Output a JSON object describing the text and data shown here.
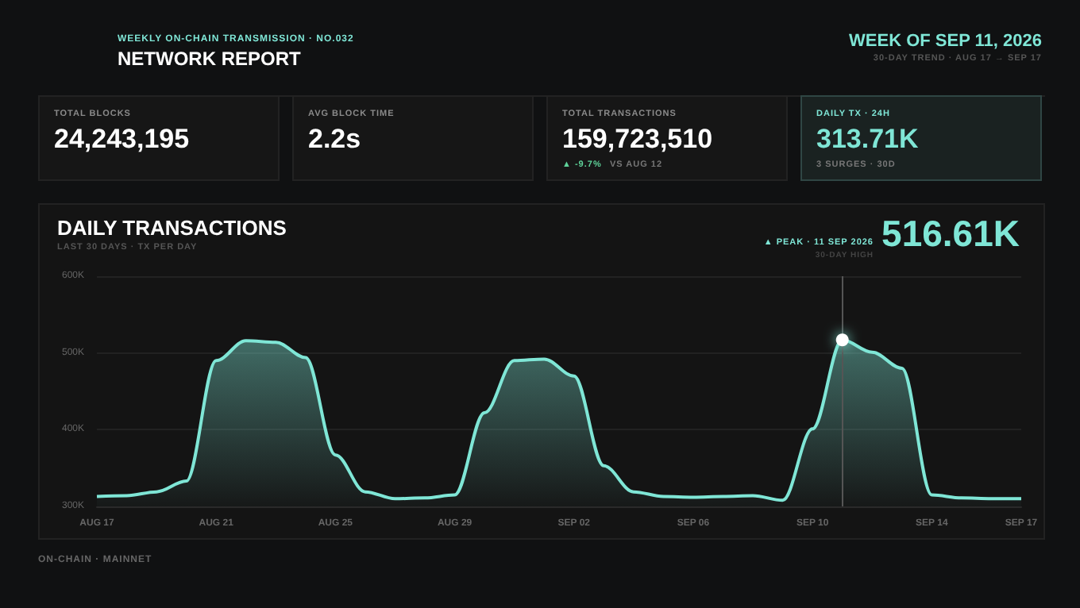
{
  "chart_data": {
    "type": "area",
    "title": "DAILY TRANSACTIONS",
    "subtitle": "LAST 30 DAYS · TX PER DAY",
    "categories": [
      "AUG 17",
      null,
      null,
      null,
      "AUG 21",
      null,
      null,
      null,
      "AUG 25",
      null,
      null,
      null,
      "AUG 29",
      null,
      null,
      null,
      "SEP 02",
      null,
      null,
      null,
      "SEP 06",
      null,
      null,
      null,
      "SEP 10",
      null,
      null,
      null,
      "SEP 14",
      null,
      null,
      "SEP 17"
    ],
    "series": [
      {
        "color": "#7fe6d6",
        "values": [
          313,
          314,
          319,
          333,
          490,
          516,
          514,
          494,
          367,
          319,
          310,
          311,
          315,
          422,
          490,
          492,
          470,
          353,
          319,
          313,
          312,
          313,
          314,
          308,
          401,
          517,
          501,
          480,
          315,
          311,
          310,
          310
        ]
      }
    ],
    "ylim": [
      300,
      600
    ],
    "yticks": [
      {
        "value": 300,
        "label": "300K"
      },
      {
        "value": 400,
        "label": "400K"
      },
      {
        "value": 500,
        "label": "500K"
      },
      {
        "value": 600,
        "label": "600K"
      }
    ],
    "grid": "y",
    "marker": "none",
    "annotations": [
      "WEEKLY ON-CHAIN TRANSMISSION · NO.032",
      "NETWORK REPORT",
      "WEEK OF SEP 11, 2026",
      "30-DAY TREND · AUG 17 → SEP 17",
      "TOTAL BLOCKS",
      "24,243,195",
      "AVG BLOCK TIME",
      "2.2s",
      "TOTAL TRANSACTIONS",
      "159,723,510",
      "▲ -9.7%",
      "VS AUG 12",
      "DAILY TX · 24H",
      "313.71K",
      "3 SURGES · 30D",
      "▲ PEAK · 11 SEP 2026",
      "30-DAY HIGH",
      "516.61K",
      "ON-CHAIN · MAINNET"
    ]
  }
}
